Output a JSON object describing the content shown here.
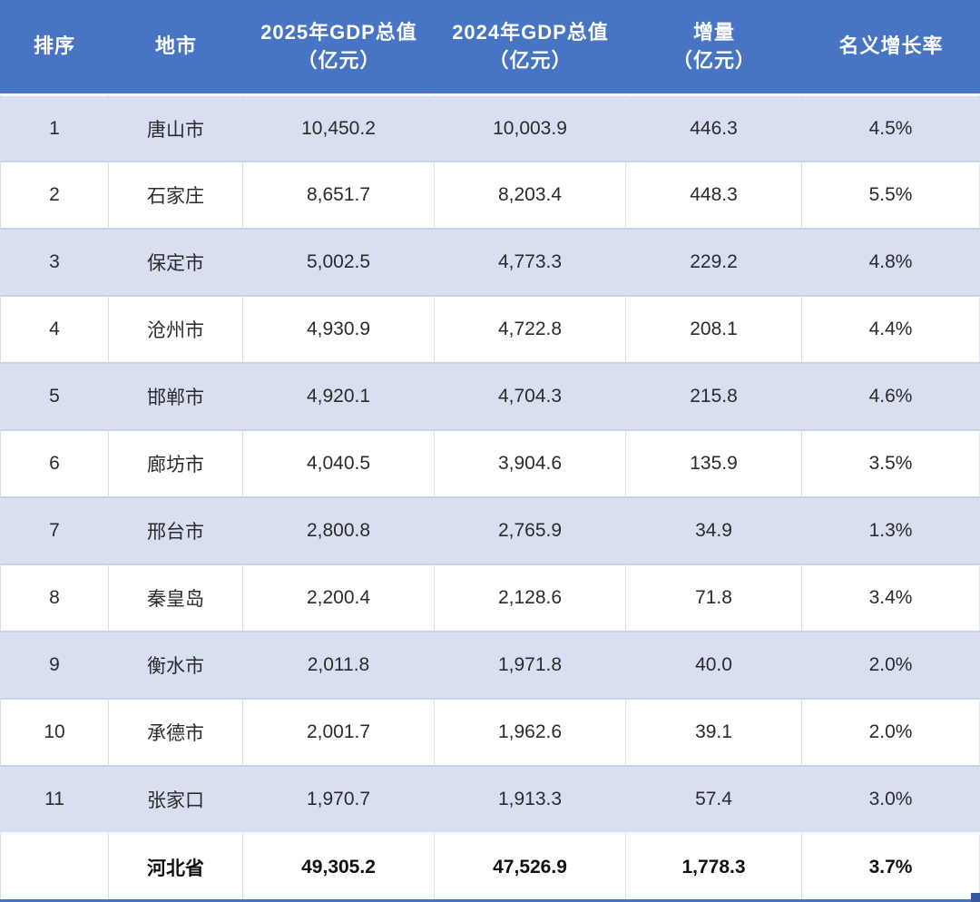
{
  "chart_data": {
    "type": "table",
    "columns": [
      "排序",
      "地市",
      "2025年GDP总值（亿元）",
      "2024年GDP总值（亿元）",
      "增量（亿元）",
      "名义增长率"
    ],
    "rows": [
      [
        "1",
        "唐山市",
        "10,450.2",
        "10,003.9",
        "446.3",
        "4.5%"
      ],
      [
        "2",
        "石家庄",
        "8,651.7",
        "8,203.4",
        "448.3",
        "5.5%"
      ],
      [
        "3",
        "保定市",
        "5,002.5",
        "4,773.3",
        "229.2",
        "4.8%"
      ],
      [
        "4",
        "沧州市",
        "4,930.9",
        "4,722.8",
        "208.1",
        "4.4%"
      ],
      [
        "5",
        "邯郸市",
        "4,920.1",
        "4,704.3",
        "215.8",
        "4.6%"
      ],
      [
        "6",
        "廊坊市",
        "4,040.5",
        "3,904.6",
        "135.9",
        "3.5%"
      ],
      [
        "7",
        "邢台市",
        "2,800.8",
        "2,765.9",
        "34.9",
        "1.3%"
      ],
      [
        "8",
        "秦皇岛",
        "2,200.4",
        "2,128.6",
        "71.8",
        "3.4%"
      ],
      [
        "9",
        "衡水市",
        "2,011.8",
        "1,971.8",
        "40.0",
        "2.0%"
      ],
      [
        "10",
        "承德市",
        "2,001.7",
        "1,962.6",
        "39.1",
        "2.0%"
      ],
      [
        "11",
        "张家口",
        "1,970.7",
        "1,913.3",
        "57.4",
        "3.0%"
      ]
    ],
    "total_row": [
      "",
      "河北省",
      "49,305.2",
      "47,526.9",
      "1,778.3",
      "3.7%"
    ]
  },
  "header": {
    "columns": [
      {
        "label": "排序",
        "sublabel": ""
      },
      {
        "label": "地市",
        "sublabel": ""
      },
      {
        "label": "2025年GDP总值",
        "sublabel": "（亿元）"
      },
      {
        "label": "2024年GDP总值",
        "sublabel": "（亿元）"
      },
      {
        "label": "增量",
        "sublabel": "（亿元）"
      },
      {
        "label": "名义增长率",
        "sublabel": ""
      }
    ]
  },
  "colors": {
    "header_bg": "#4874c4",
    "stripe_bg": "#d8dff0",
    "row_separator": "#c9d2e8",
    "gridline": "#d9dde7",
    "header_text": "#ffffff",
    "body_text": "#2b2b2b",
    "selection_border": "#4472c4",
    "fill_handle": "#35599c"
  }
}
